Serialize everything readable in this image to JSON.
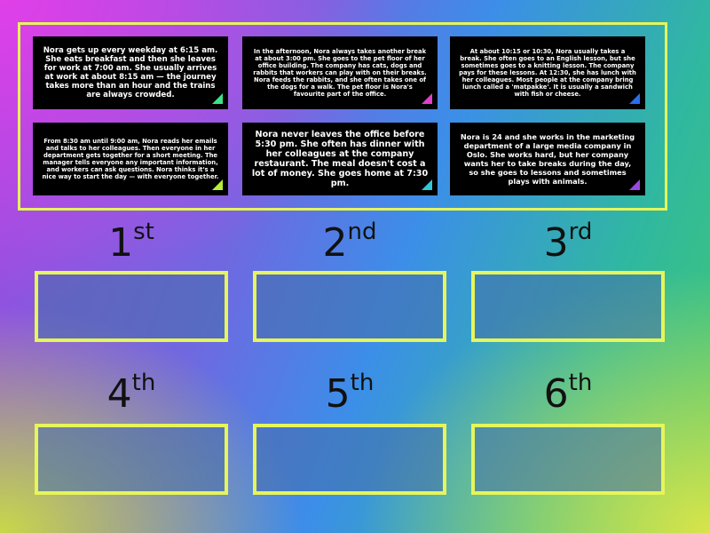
{
  "colors": {
    "frame": "#e6f55a",
    "card_bg": "#000000"
  },
  "cards": [
    {
      "text": "Nora gets up every weekday at 6:15 am. She eats breakfast and then she leaves for work at 7:00 am. She usually arrives at work at about 8:15 am — the journey takes more than an hour and the trains are always crowded.",
      "corner_color": "#3ee08a"
    },
    {
      "text": "In the afternoon, Nora always takes another break at about 3:00 pm. She goes to the pet floor of her office building. The company has cats, dogs and rabbits that workers can play with on their breaks. Nora feeds the rabbits, and she often takes one of the dogs for a walk. The pet floor is Nora's favourite part of the office.",
      "corner_color": "#e040c8"
    },
    {
      "text": "At about 10:15 or 10:30, Nora usually takes a break. She often goes to an English lesson, but she sometimes goes to a knitting lesson. The company pays for these lessons. At 12:30, she has lunch with her colleagues. Most people at the company bring lunch called a 'matpakke'. It is usually a sandwich with fish or cheese.",
      "corner_color": "#2a6ee8"
    },
    {
      "text": "From 8:30 am until 9:00 am, Nora reads her emails and talks to her colleagues. Then everyone in her department gets together for a short meeting. The manager tells everyone any important information, and workers can ask questions. Nora thinks it's a nice way to start the day — with everyone together.",
      "corner_color": "#b8ec3a"
    },
    {
      "text": "Nora never leaves the office before 5:30 pm. She often has dinner with her colleagues at the company restaurant. The meal doesn't cost a lot of money. She goes home at 7:30 pm.",
      "corner_color": "#30c8d8"
    },
    {
      "text": "Nora is 24 and she works in the marketing department of a large media company in Oslo. She works hard, but her company wants her to take breaks during the day, so she goes to lessons and sometimes plays with animals.",
      "corner_color": "#9a48e0"
    }
  ],
  "slots": [
    {
      "num": "1",
      "suffix": "st"
    },
    {
      "num": "2",
      "suffix": "nd"
    },
    {
      "num": "3",
      "suffix": "rd"
    },
    {
      "num": "4",
      "suffix": "th"
    },
    {
      "num": "5",
      "suffix": "th"
    },
    {
      "num": "6",
      "suffix": "th"
    }
  ]
}
